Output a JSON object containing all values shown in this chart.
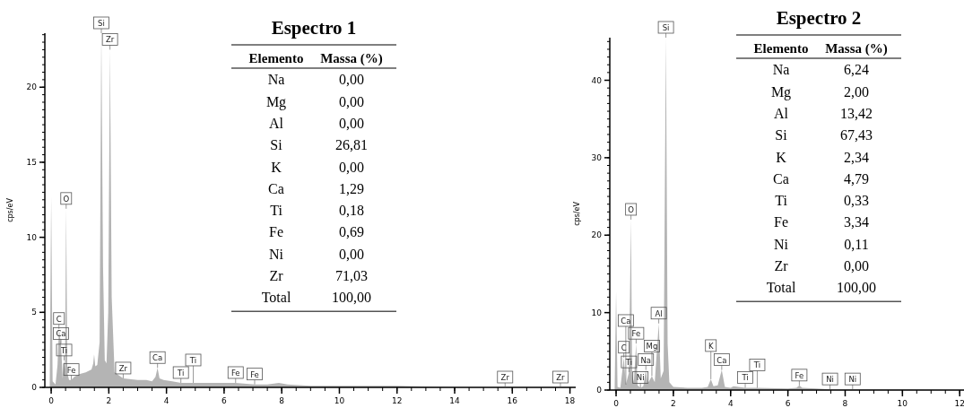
{
  "chart_data": [
    {
      "type": "area",
      "ylabel": "cps/eV",
      "xlim": [
        -0.22,
        18.2
      ],
      "ylim": [
        0,
        23.6
      ],
      "xticks": [
        0,
        2,
        4,
        6,
        8,
        10,
        12,
        14,
        16,
        18
      ],
      "yticks": [
        0,
        5,
        10,
        15,
        20
      ],
      "grid": false,
      "series": [
        {
          "color": "#b4b4b4",
          "x": [
            -0.05,
            0.0,
            0.05,
            0.15,
            0.22,
            0.27,
            0.34,
            0.4,
            0.45,
            0.48,
            0.52,
            0.56,
            0.62,
            0.7,
            0.8,
            1.0,
            1.2,
            1.4,
            1.46,
            1.49,
            1.53,
            1.6,
            1.68,
            1.74,
            1.8,
            1.86,
            1.92,
            1.98,
            2.04,
            2.1,
            2.2,
            2.5,
            3.0,
            3.3,
            3.5,
            3.62,
            3.69,
            3.76,
            3.9,
            4.2,
            4.5,
            4.93,
            5.5,
            6.0,
            6.4,
            7.06,
            7.5,
            7.9,
            8.2,
            9.0,
            10.0,
            12.0,
            14.0,
            15.75,
            17.67,
            18.0
          ],
          "values": [
            0,
            12.7,
            0.4,
            0.2,
            1.5,
            3.9,
            2.9,
            0.6,
            1.8,
            1.2,
            11.9,
            1.0,
            0.5,
            0.5,
            0.7,
            0.9,
            1.0,
            1.2,
            1.6,
            2.2,
            1.4,
            1.5,
            3.0,
            23.6,
            8.0,
            1.8,
            1.6,
            5.0,
            22.5,
            6.0,
            1.0,
            0.6,
            0.5,
            0.5,
            0.4,
            0.7,
            1.3,
            0.6,
            0.5,
            0.4,
            0.3,
            0.3,
            0.3,
            0.3,
            0.3,
            0.2,
            0.2,
            0.3,
            0.2,
            0.1,
            0.1,
            0.1,
            0,
            0,
            0,
            0
          ]
        }
      ],
      "annotations": [
        {
          "text": "Si",
          "x": 1.74,
          "y": 23.6
        },
        {
          "text": "Zr",
          "x": 2.04,
          "y": 22.5
        },
        {
          "text": "O",
          "x": 0.52,
          "y": 11.9
        },
        {
          "text": "C",
          "x": 0.27,
          "y": 3.9
        },
        {
          "text": "Ca",
          "x": 0.34,
          "y": 2.9
        },
        {
          "text": "Ti",
          "x": 0.45,
          "y": 1.8
        },
        {
          "text": "Fe",
          "x": 0.7,
          "y": 0.5
        },
        {
          "text": "Zr",
          "x": 2.5,
          "y": 0.6
        },
        {
          "text": "Ca",
          "x": 3.69,
          "y": 1.3
        },
        {
          "text": "Ti",
          "x": 4.5,
          "y": 0.3
        },
        {
          "text": "Ti",
          "x": 4.93,
          "y": 0.3
        },
        {
          "text": "Fe",
          "x": 6.4,
          "y": 0.3
        },
        {
          "text": "Fe",
          "x": 7.06,
          "y": 0.2
        },
        {
          "text": "Zr",
          "x": 15.75,
          "y": 0
        },
        {
          "text": "Zr",
          "x": 17.67,
          "y": 0
        }
      ]
    },
    {
      "type": "other",
      "title": "Espectro 1",
      "annotations": [
        "Elemento",
        "Massa (%)",
        "Na",
        "0,00",
        "Mg",
        "0,00",
        "Al",
        "0,00",
        "Si",
        "26,81",
        "K",
        "0,00",
        "Ca",
        "1,29",
        "Ti",
        "0,18",
        "Fe",
        "0,69",
        "Ni",
        "0,00",
        "Zr",
        "71,03",
        "Total",
        "100,00"
      ]
    },
    {
      "type": "area",
      "ylabel": "cps/eV",
      "xlim": [
        -0.22,
        12.15
      ],
      "ylim": [
        0,
        45.5
      ],
      "xticks": [
        0,
        2,
        4,
        6,
        8,
        10,
        12
      ],
      "yticks": [
        0,
        10,
        20,
        30,
        40
      ],
      "grid": false,
      "series": [
        {
          "color": "#b4b4b4",
          "x": [
            -0.05,
            0.0,
            0.05,
            0.15,
            0.27,
            0.34,
            0.45,
            0.52,
            0.56,
            0.62,
            0.7,
            0.75,
            0.85,
            0.95,
            1.04,
            1.1,
            1.25,
            1.35,
            1.49,
            1.56,
            1.66,
            1.74,
            1.8,
            1.86,
            2.0,
            2.5,
            3.0,
            3.2,
            3.31,
            3.4,
            3.55,
            3.69,
            3.8,
            4.0,
            4.1,
            4.51,
            4.93,
            6.0,
            6.3,
            6.4,
            6.5,
            7.0,
            7.47,
            8.26,
            10.0,
            12.0
          ],
          "values": [
            0,
            12.7,
            0.4,
            0.3,
            4.2,
            0.7,
            2.3,
            22.0,
            2.0,
            1.0,
            6.0,
            0.6,
            0.3,
            0.5,
            2.6,
            0.8,
            1.8,
            1.0,
            8.6,
            1.5,
            2.5,
            45.5,
            6.0,
            1.0,
            0.4,
            0.3,
            0.3,
            0.4,
            1.4,
            0.5,
            0.6,
            2.6,
            0.4,
            0.3,
            0.5,
            0.3,
            0.3,
            0.2,
            0.3,
            0.6,
            0.3,
            0.2,
            0.1,
            0.1,
            0.1,
            0
          ]
        }
      ],
      "annotations": [
        {
          "text": "Si",
          "x": 1.74,
          "y": 45.5
        },
        {
          "text": "O",
          "x": 0.52,
          "y": 22.0
        },
        {
          "text": "Al",
          "x": 1.49,
          "y": 8.6
        },
        {
          "text": "Fe",
          "x": 0.7,
          "y": 6.0
        },
        {
          "text": "C",
          "x": 0.27,
          "y": 4.2
        },
        {
          "text": "Na",
          "x": 1.04,
          "y": 2.6
        },
        {
          "text": "Ti",
          "x": 0.45,
          "y": 2.3
        },
        {
          "text": "Mg",
          "x": 1.25,
          "y": 1.8
        },
        {
          "text": "Ca",
          "x": 0.34,
          "y": 0.7
        },
        {
          "text": "Ni",
          "x": 0.85,
          "y": 0.3
        },
        {
          "text": "K",
          "x": 3.31,
          "y": 1.4
        },
        {
          "text": "Ca",
          "x": 3.69,
          "y": 2.6
        },
        {
          "text": "Ti",
          "x": 4.51,
          "y": 0.3
        },
        {
          "text": "Ti",
          "x": 4.93,
          "y": 0.3
        },
        {
          "text": "Fe",
          "x": 6.4,
          "y": 0.6
        },
        {
          "text": "Ni",
          "x": 7.47,
          "y": 0.1
        },
        {
          "text": "Ni",
          "x": 8.26,
          "y": 0.1
        }
      ]
    },
    {
      "type": "other",
      "title": "Espectro 2",
      "annotations": [
        "Elemento",
        "Massa (%)",
        "Na",
        "6,24",
        "Mg",
        "2,00",
        "Al",
        "13,42",
        "Si",
        "67,43",
        "K",
        "2,34",
        "Ca",
        "4,79",
        "Ti",
        "0,33",
        "Fe",
        "3,34",
        "Ni",
        "0,11",
        "Zr",
        "0,00",
        "Total",
        "100,00"
      ]
    }
  ]
}
